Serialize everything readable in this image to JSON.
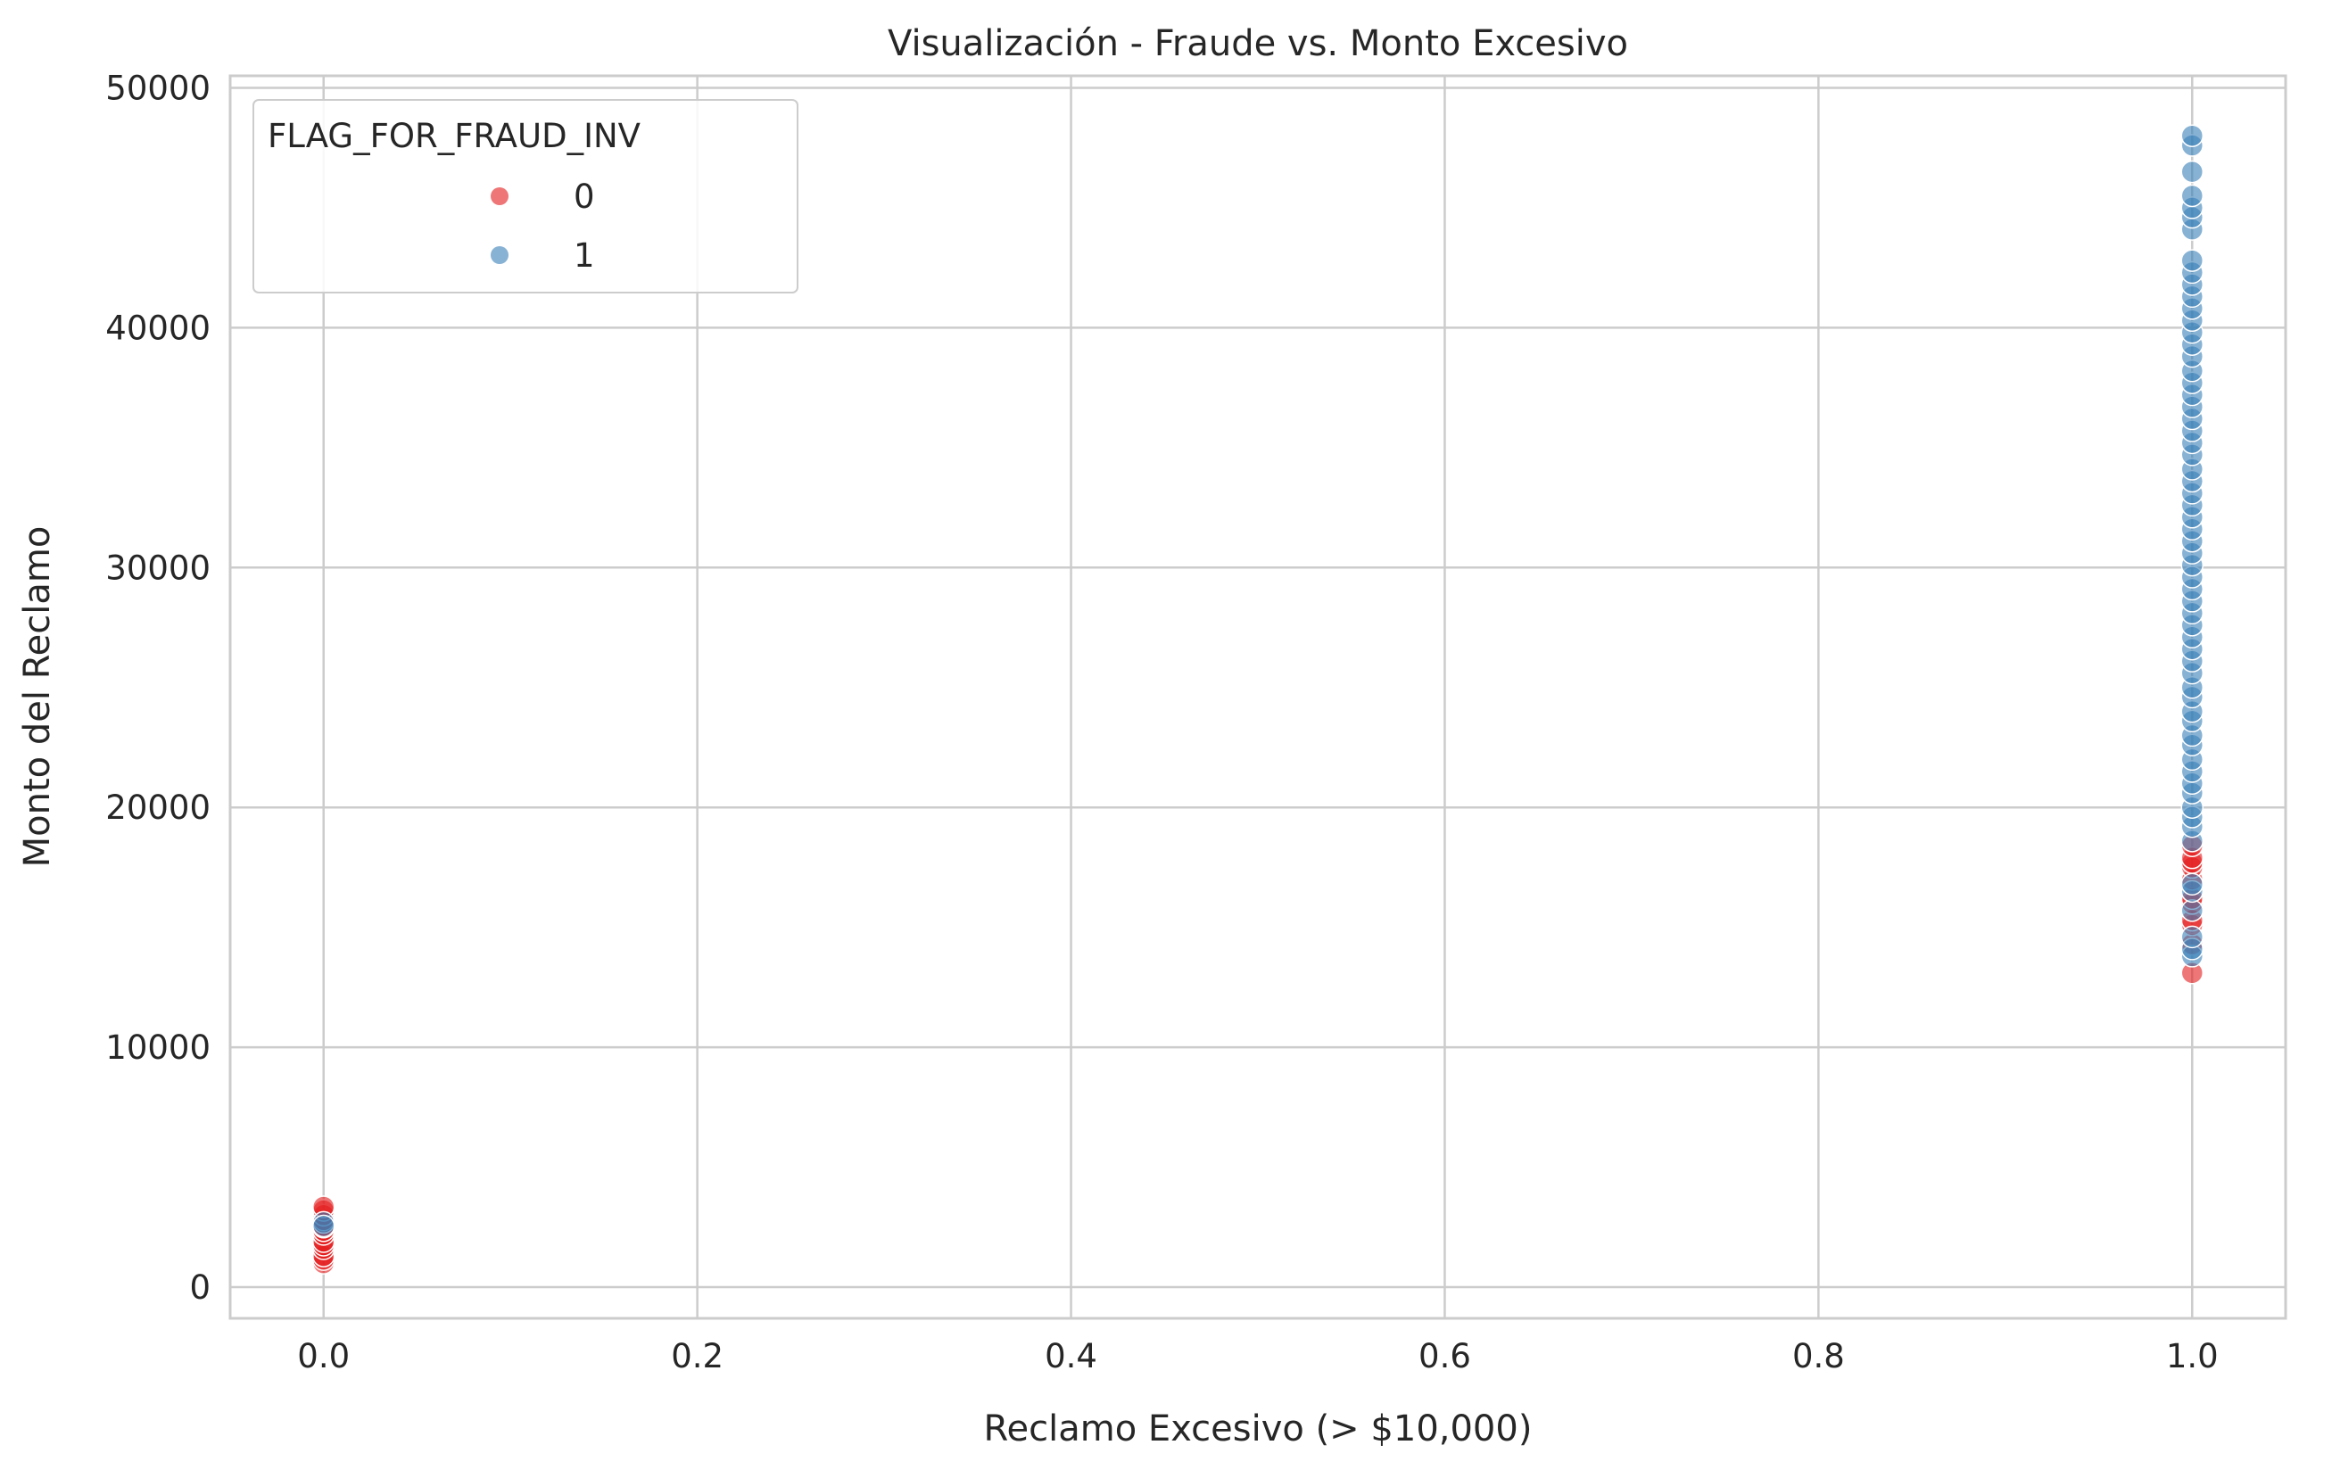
{
  "chart_data": {
    "type": "scatter",
    "title": "Visualización - Fraude vs. Monto Excesivo",
    "xlabel": "Reclamo Excesivo (> $10,000)",
    "ylabel": "Monto del Reclamo",
    "xlim": [
      -0.05,
      1.05
    ],
    "ylim": [
      -1300,
      50500
    ],
    "x_ticks": [
      0.0,
      0.2,
      0.4,
      0.6,
      0.8,
      1.0
    ],
    "x_tick_labels": [
      "0.0",
      "0.2",
      "0.4",
      "0.6",
      "0.8",
      "1.0"
    ],
    "y_ticks": [
      0,
      10000,
      20000,
      30000,
      40000,
      50000
    ],
    "y_tick_labels": [
      "0",
      "10000",
      "20000",
      "30000",
      "40000",
      "50000"
    ],
    "grid": true,
    "legend": {
      "title": "FLAG_FOR_FRAUD_INV",
      "placement": "top-left",
      "entries": [
        {
          "label": "0",
          "color": "#e41a1c"
        },
        {
          "label": "1",
          "color": "#377eb8"
        }
      ]
    },
    "series": [
      {
        "name": "0",
        "color": "#e41a1c",
        "points": [
          [
            0,
            1000
          ],
          [
            0,
            1150
          ],
          [
            0,
            1300
          ],
          [
            0,
            1600
          ],
          [
            0,
            1750
          ],
          [
            0,
            1900
          ],
          [
            0,
            2200
          ],
          [
            0,
            2350
          ],
          [
            0,
            2500
          ],
          [
            0,
            2800
          ],
          [
            0,
            3000
          ],
          [
            0,
            3200
          ],
          [
            0,
            3350
          ],
          [
            1,
            13100
          ],
          [
            1,
            14300
          ],
          [
            1,
            15100
          ],
          [
            1,
            15300
          ],
          [
            1,
            16000
          ],
          [
            1,
            16200
          ],
          [
            1,
            17000
          ],
          [
            1,
            17500
          ],
          [
            1,
            17700
          ],
          [
            1,
            17900
          ],
          [
            1,
            18400
          ]
        ]
      },
      {
        "name": "1",
        "color": "#377eb8",
        "points": [
          [
            0,
            2700
          ],
          [
            0,
            2550
          ],
          [
            1,
            13800
          ],
          [
            1,
            14100
          ],
          [
            1,
            14600
          ],
          [
            1,
            15700
          ],
          [
            1,
            16500
          ],
          [
            1,
            16800
          ],
          [
            1,
            18600
          ],
          [
            1,
            19200
          ],
          [
            1,
            19600
          ],
          [
            1,
            20000
          ],
          [
            1,
            20600
          ],
          [
            1,
            21000
          ],
          [
            1,
            21500
          ],
          [
            1,
            22000
          ],
          [
            1,
            22600
          ],
          [
            1,
            23000
          ],
          [
            1,
            23600
          ],
          [
            1,
            24000
          ],
          [
            1,
            24600
          ],
          [
            1,
            25000
          ],
          [
            1,
            25600
          ],
          [
            1,
            26100
          ],
          [
            1,
            26600
          ],
          [
            1,
            27100
          ],
          [
            1,
            27600
          ],
          [
            1,
            28100
          ],
          [
            1,
            28600
          ],
          [
            1,
            29100
          ],
          [
            1,
            29600
          ],
          [
            1,
            30100
          ],
          [
            1,
            30600
          ],
          [
            1,
            31100
          ],
          [
            1,
            31600
          ],
          [
            1,
            32100
          ],
          [
            1,
            32600
          ],
          [
            1,
            33100
          ],
          [
            1,
            33600
          ],
          [
            1,
            34100
          ],
          [
            1,
            34700
          ],
          [
            1,
            35200
          ],
          [
            1,
            35700
          ],
          [
            1,
            36200
          ],
          [
            1,
            36700
          ],
          [
            1,
            37200
          ],
          [
            1,
            37700
          ],
          [
            1,
            38200
          ],
          [
            1,
            38800
          ],
          [
            1,
            39300
          ],
          [
            1,
            39800
          ],
          [
            1,
            40300
          ],
          [
            1,
            40800
          ],
          [
            1,
            41300
          ],
          [
            1,
            41800
          ],
          [
            1,
            42300
          ],
          [
            1,
            42800
          ],
          [
            1,
            44100
          ],
          [
            1,
            44600
          ],
          [
            1,
            45000
          ],
          [
            1,
            45500
          ],
          [
            1,
            46500
          ],
          [
            1,
            47600
          ],
          [
            1,
            48000
          ]
        ]
      }
    ]
  }
}
